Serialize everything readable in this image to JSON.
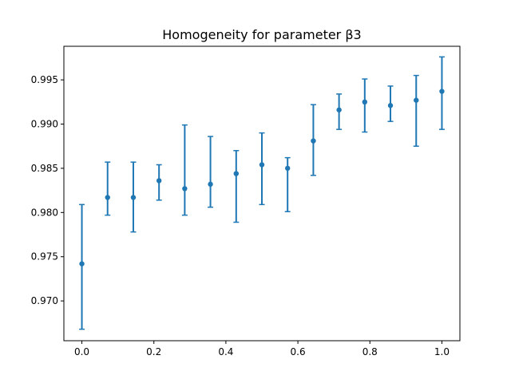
{
  "chart_data": {
    "type": "scatter",
    "title": "Homogeneity for parameter β3",
    "xlabel": "",
    "ylabel": "",
    "xlim": [
      -0.05,
      1.05
    ],
    "ylim": [
      0.9655,
      0.9988
    ],
    "xticks": [
      0.0,
      0.2,
      0.4,
      0.6,
      0.8,
      1.0
    ],
    "xtick_labels": [
      "0.0",
      "0.2",
      "0.4",
      "0.6",
      "0.8",
      "1.0"
    ],
    "yticks": [
      0.97,
      0.975,
      0.98,
      0.985,
      0.99,
      0.995
    ],
    "ytick_labels": [
      "0.970",
      "0.975",
      "0.980",
      "0.985",
      "0.990",
      "0.995"
    ],
    "grid": false,
    "color": "#1f77b4",
    "series": [
      {
        "x": [
          0.0,
          0.0714,
          0.1429,
          0.2143,
          0.2857,
          0.3571,
          0.4286,
          0.5,
          0.5714,
          0.6429,
          0.7143,
          0.7857,
          0.8571,
          0.9286,
          1.0
        ],
        "y": [
          0.9742,
          0.9817,
          0.9817,
          0.9836,
          0.9827,
          0.9832,
          0.9844,
          0.9854,
          0.985,
          0.9881,
          0.9916,
          0.9925,
          0.9921,
          0.9927,
          0.9937
        ],
        "y_low": [
          0.9668,
          0.9797,
          0.9778,
          0.9814,
          0.9797,
          0.9806,
          0.9789,
          0.9809,
          0.9801,
          0.9842,
          0.9894,
          0.9891,
          0.9903,
          0.9875,
          0.9894
        ],
        "y_high": [
          0.9809,
          0.9857,
          0.9857,
          0.9854,
          0.9899,
          0.9886,
          0.987,
          0.989,
          0.9862,
          0.9922,
          0.9934,
          0.9951,
          0.9943,
          0.9955,
          0.9976
        ]
      }
    ]
  }
}
